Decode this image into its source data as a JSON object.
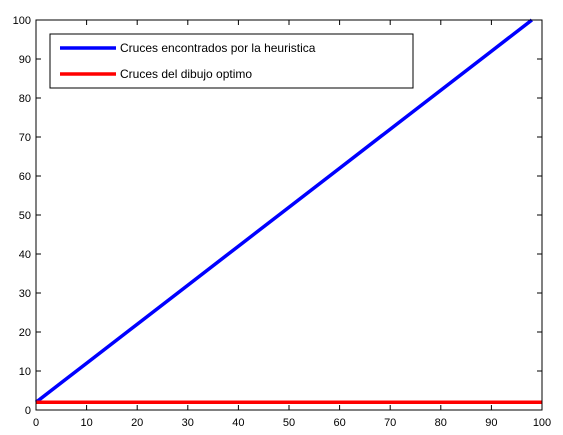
{
  "chart_data": {
    "type": "line",
    "title": "",
    "xlabel": "",
    "ylabel": "",
    "xlim": [
      0,
      100
    ],
    "ylim": [
      0,
      100
    ],
    "x_ticks": [
      0,
      10,
      20,
      30,
      40,
      50,
      60,
      70,
      80,
      90,
      100
    ],
    "y_ticks": [
      0,
      10,
      20,
      30,
      40,
      50,
      60,
      70,
      80,
      90,
      100
    ],
    "grid": false,
    "legend_position": "top-left",
    "series": [
      {
        "name": "Cruces encontrados por la heuristica",
        "color": "#0000ff",
        "x": [
          0,
          10,
          20,
          30,
          40,
          50,
          60,
          70,
          80,
          90,
          98
        ],
        "y": [
          2,
          12,
          22,
          32,
          42,
          52,
          62,
          72,
          82,
          92,
          100
        ]
      },
      {
        "name": "Cruces del dibujo optimo",
        "color": "#ff0000",
        "x": [
          0,
          100
        ],
        "y": [
          2,
          2
        ]
      }
    ]
  }
}
